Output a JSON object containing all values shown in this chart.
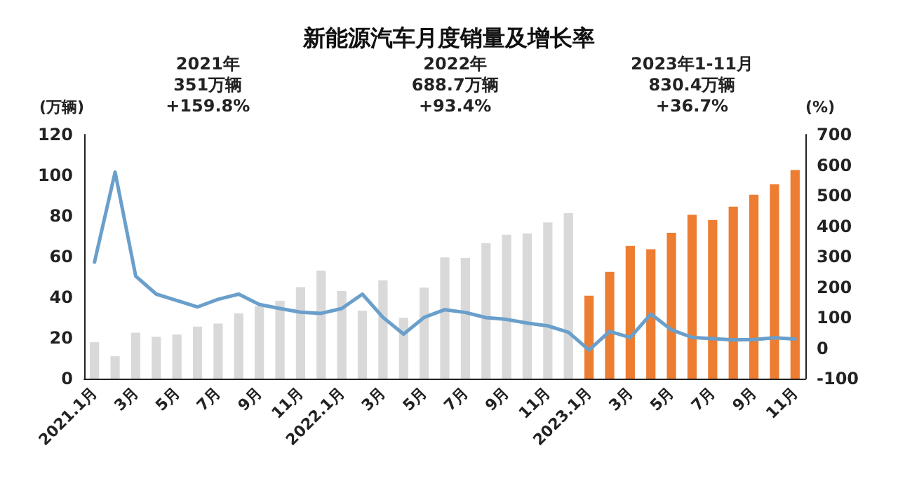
{
  "chart_data": {
    "type": "bar",
    "title": "新能源汽车月度销量及增长率",
    "ylabel": "(万辆)",
    "y2label": "(%)",
    "categories": [
      "2021.1月",
      null,
      "3月",
      null,
      "5月",
      null,
      "7月",
      null,
      "9月",
      null,
      "11月",
      null,
      "2022.1月",
      null,
      "3月",
      null,
      "5月",
      null,
      "7月",
      null,
      "9月",
      null,
      "11月",
      null,
      "2023.1月",
      null,
      "3月",
      null,
      "5月",
      null,
      "7月",
      null,
      "9月",
      null,
      "11月"
    ],
    "series": [
      {
        "values": [
          17.9,
          11.0,
          22.6,
          20.6,
          21.7,
          25.6,
          27.1,
          32.1,
          35.7,
          38.3,
          45.0,
          53.1,
          43.1,
          33.4,
          48.4,
          29.9,
          44.7,
          59.6,
          59.3,
          66.6,
          70.8,
          71.4,
          76.8,
          81.4,
          40.8,
          52.5,
          65.3,
          63.6,
          71.7,
          80.6,
          78.0,
          84.6,
          90.4,
          95.6,
          102.6
        ],
        "colors": [
          "#d9d9d9",
          "#d9d9d9",
          "#d9d9d9",
          "#d9d9d9",
          "#d9d9d9",
          "#d9d9d9",
          "#d9d9d9",
          "#d9d9d9",
          "#d9d9d9",
          "#d9d9d9",
          "#d9d9d9",
          "#d9d9d9",
          "#d9d9d9",
          "#d9d9d9",
          "#d9d9d9",
          "#d9d9d9",
          "#d9d9d9",
          "#d9d9d9",
          "#d9d9d9",
          "#d9d9d9",
          "#d9d9d9",
          "#d9d9d9",
          "#d9d9d9",
          "#d9d9d9",
          "#ed7d31",
          "#ed7d31",
          "#ed7d31",
          "#ed7d31",
          "#ed7d31",
          "#ed7d31",
          "#ed7d31",
          "#ed7d31",
          "#ed7d31",
          "#ed7d31",
          "#ed7d31"
        ]
      },
      {
        "type": "line",
        "axis": "y2",
        "color": "#6a9fcb",
        "values": [
          282,
          577,
          236,
          177,
          156,
          135,
          160,
          177,
          143,
          130,
          118,
          114,
          130,
          177,
          101,
          46,
          101,
          126,
          117,
          100,
          94,
          82,
          73,
          52,
          -6,
          55,
          35,
          112,
          60,
          35,
          31,
          27,
          28,
          34,
          30
        ]
      }
    ],
    "ylim": [
      0,
      120
    ],
    "yticks": [
      0,
      20,
      40,
      60,
      80,
      100,
      120
    ],
    "y2lim": [
      -100,
      700
    ],
    "y2ticks": [
      -100,
      0,
      100,
      200,
      300,
      400,
      500,
      600,
      700
    ],
    "annotations": [
      "2021年\n351万辆\n+159.8%",
      "2022年\n688.7万辆\n+93.4%",
      "2023年1-11月\n830.4万辆\n+36.7%"
    ],
    "grid": false,
    "marker": "none",
    "line_style": "solid"
  }
}
